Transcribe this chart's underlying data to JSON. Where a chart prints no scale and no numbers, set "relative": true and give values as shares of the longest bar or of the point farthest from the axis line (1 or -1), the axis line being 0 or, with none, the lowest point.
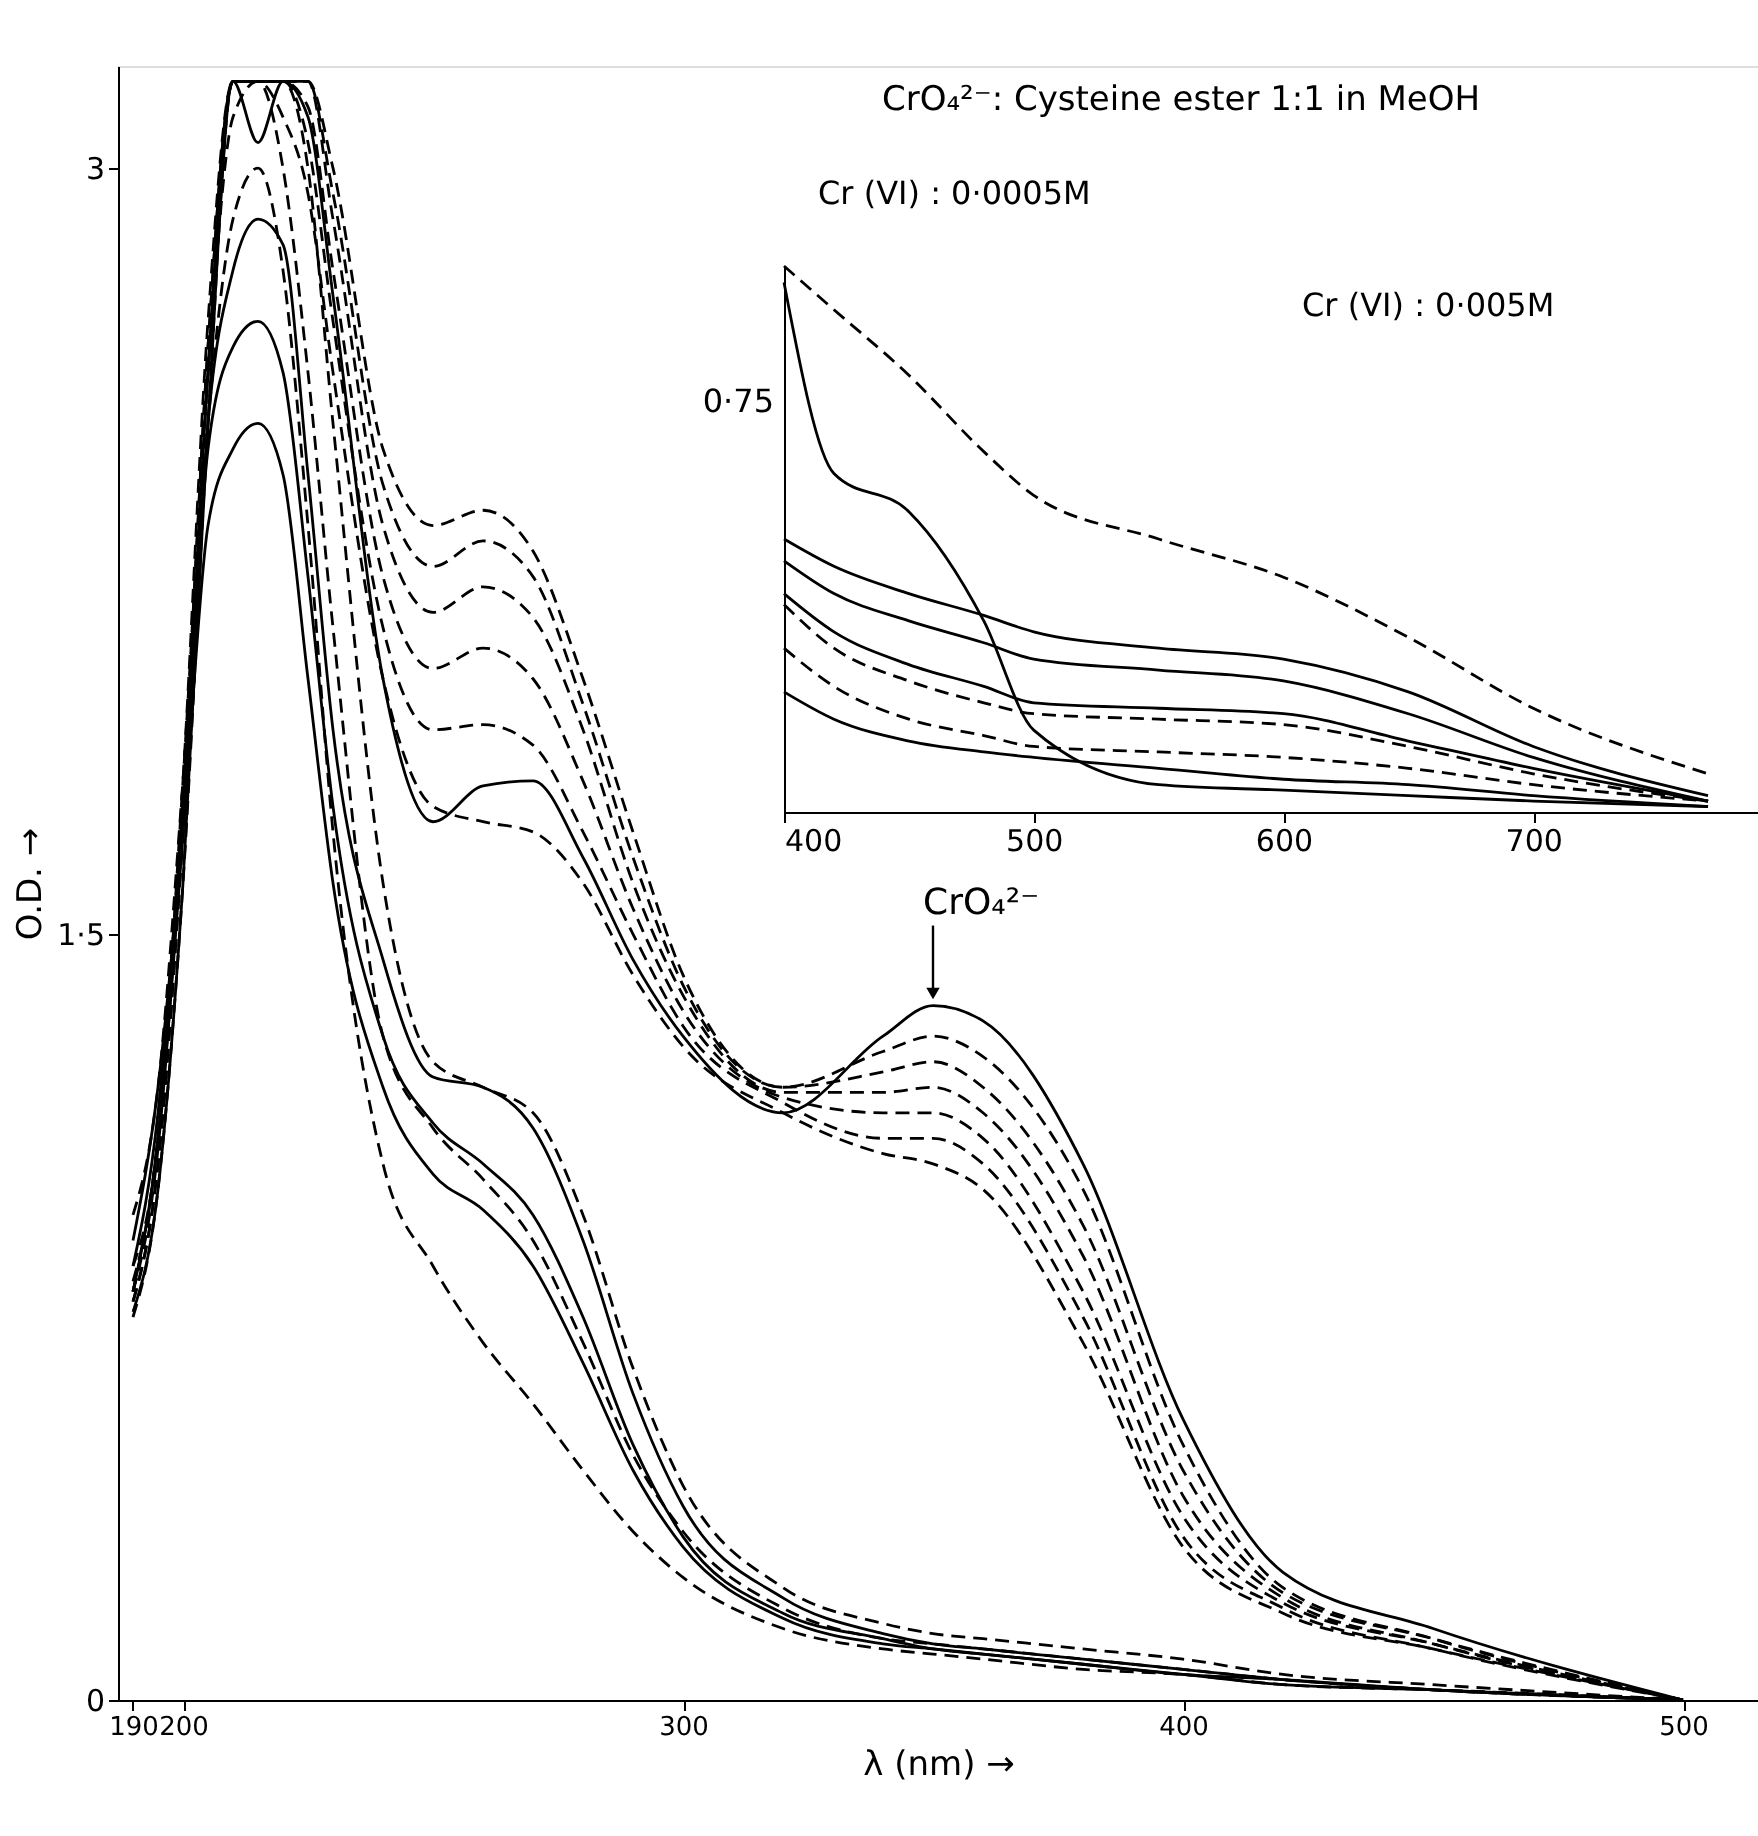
{
  "chart_data": [
    {
      "type": "line",
      "title": "CrO₄²⁻: Cysteine ester 1:1 in MeOH",
      "xlabel": "λ (nm) →",
      "ylabel": "O.D. →",
      "x": [
        190,
        195,
        200,
        205,
        210,
        215,
        220,
        225,
        230,
        240,
        250,
        260,
        270,
        280,
        290,
        300,
        320,
        340,
        350,
        360,
        380,
        400,
        420,
        450,
        500
      ],
      "xlim": [
        187,
        515
      ],
      "xticks": [
        190,
        200,
        300,
        400,
        500
      ],
      "ylim": [
        0,
        3.2
      ],
      "yticks": [
        0,
        {
          "value": 1.5,
          "label": "1·5"
        },
        3
      ],
      "series": [
        {
          "color": "#000000",
          "line_style": "dashed",
          "values": [
            0.78,
            1.05,
            1.7,
            2.6,
            3.17,
            3.17,
            3.17,
            3.17,
            3.0,
            2.45,
            2.3,
            2.33,
            2.25,
            2.0,
            1.7,
            1.42,
            1.2,
            1.27,
            1.3,
            1.26,
            1.0,
            0.5,
            0.22,
            0.12,
            0
          ]
        },
        {
          "color": "#000000",
          "line_style": "dashed",
          "values": [
            0.8,
            1.1,
            1.75,
            2.65,
            3.17,
            3.17,
            3.17,
            3.17,
            2.95,
            2.38,
            2.22,
            2.27,
            2.2,
            1.95,
            1.65,
            1.4,
            1.2,
            1.23,
            1.25,
            1.2,
            0.93,
            0.45,
            0.21,
            0.12,
            0
          ]
        },
        {
          "color": "#000000",
          "line_style": "dashed",
          "values": [
            0.82,
            1.1,
            1.8,
            2.7,
            3.17,
            3.17,
            3.17,
            3.17,
            2.9,
            2.3,
            2.13,
            2.18,
            2.12,
            1.9,
            1.6,
            1.38,
            1.19,
            1.19,
            1.2,
            1.15,
            0.87,
            0.4,
            0.2,
            0.11,
            0
          ]
        },
        {
          "color": "#000000",
          "line_style": "dashed",
          "values": [
            0.8,
            1.08,
            1.75,
            2.65,
            3.17,
            3.17,
            3.17,
            3.12,
            2.8,
            2.2,
            2.02,
            2.06,
            2.0,
            1.8,
            1.55,
            1.35,
            1.18,
            1.15,
            1.15,
            1.1,
            0.8,
            0.36,
            0.19,
            0.11,
            0
          ]
        },
        {
          "color": "#000000",
          "line_style": "dashed",
          "values": [
            0.78,
            1.05,
            1.7,
            2.6,
            3.17,
            3.17,
            3.17,
            3.05,
            2.7,
            2.1,
            1.9,
            1.91,
            1.87,
            1.7,
            1.5,
            1.32,
            1.17,
            1.1,
            1.1,
            1.05,
            0.75,
            0.32,
            0.18,
            0.1,
            0
          ]
        },
        {
          "color": "#000000",
          "line_style": "solid",
          "values": [
            0.76,
            1.0,
            1.6,
            2.5,
            3.17,
            3.05,
            3.17,
            3.1,
            2.75,
            2.0,
            1.72,
            1.79,
            1.8,
            1.65,
            1.45,
            1.3,
            1.15,
            1.3,
            1.36,
            1.33,
            1.05,
            0.55,
            0.25,
            0.14,
            0
          ]
        },
        {
          "color": "#000000",
          "line_style": "dashed",
          "values": [
            0.75,
            1.0,
            1.6,
            2.5,
            3.17,
            3.17,
            3.1,
            2.95,
            2.6,
            2.0,
            1.75,
            1.72,
            1.7,
            1.6,
            1.42,
            1.28,
            1.15,
            1.07,
            1.05,
            1.0,
            0.7,
            0.3,
            0.17,
            0.1,
            0
          ]
        },
        {
          "color": "#000000",
          "line_style": "solid",
          "values": [
            0.8,
            1.1,
            1.7,
            2.5,
            2.8,
            2.9,
            2.85,
            2.4,
            1.9,
            1.45,
            1.22,
            1.2,
            1.12,
            0.9,
            0.6,
            0.38,
            0.2,
            0.13,
            0.11,
            0.1,
            0.08,
            0.06,
            0.04,
            0.02,
            0
          ]
        },
        {
          "color": "#000000",
          "line_style": "solid",
          "values": [
            0.85,
            1.15,
            1.75,
            2.45,
            2.65,
            2.7,
            2.6,
            2.2,
            1.75,
            1.3,
            1.13,
            1.05,
            0.95,
            0.75,
            0.5,
            0.32,
            0.17,
            0.12,
            0.1,
            0.09,
            0.07,
            0.05,
            0.04,
            0.02,
            0
          ]
        },
        {
          "color": "#000000",
          "line_style": "solid",
          "values": [
            0.9,
            1.2,
            1.7,
            2.3,
            2.45,
            2.5,
            2.4,
            2.0,
            1.6,
            1.2,
            1.03,
            0.96,
            0.85,
            0.66,
            0.45,
            0.3,
            0.16,
            0.11,
            0.1,
            0.09,
            0.07,
            0.05,
            0.03,
            0.02,
            0
          ]
        },
        {
          "color": "#000000",
          "line_style": "dashed",
          "values": [
            0.8,
            1.1,
            1.75,
            2.6,
            3.17,
            3.17,
            3.17,
            3.0,
            2.5,
            1.6,
            1.25,
            1.2,
            1.15,
            0.95,
            0.65,
            0.42,
            0.22,
            0.15,
            0.13,
            0.12,
            0.1,
            0.08,
            0.05,
            0.03,
            0
          ]
        },
        {
          "color": "#000000",
          "line_style": "dashed",
          "values": [
            0.85,
            1.1,
            1.8,
            2.6,
            3.1,
            3.17,
            3.0,
            2.6,
            2.1,
            1.3,
            1.12,
            1.02,
            0.9,
            0.7,
            0.48,
            0.33,
            0.18,
            0.12,
            0.11,
            0.1,
            0.08,
            0.06,
            0.04,
            0.02,
            0
          ]
        },
        {
          "color": "#000000",
          "line_style": "dashed",
          "values": [
            0.95,
            1.2,
            1.8,
            2.5,
            2.9,
            3.0,
            2.8,
            2.3,
            1.7,
            1.05,
            0.85,
            0.7,
            0.58,
            0.45,
            0.33,
            0.24,
            0.14,
            0.1,
            0.09,
            0.08,
            0.06,
            0.05,
            0.03,
            0.02,
            0
          ]
        }
      ],
      "annotations": [
        "Cr (VI) : 0·0005M",
        {
          "text": "CrO₄²⁻",
          "x": 350,
          "y": 1.36
        }
      ]
    },
    {
      "type": "line",
      "x": [
        400,
        420,
        450,
        480,
        500,
        550,
        600,
        650,
        700,
        770
      ],
      "xlim": [
        400,
        790
      ],
      "xticks": [
        400,
        500,
        600,
        700
      ],
      "relative": true,
      "series": [
        {
          "color": "#000000",
          "line_style": "dashed",
          "values": [
            1.0,
            0.92,
            0.8,
            0.66,
            0.58,
            0.5,
            0.43,
            0.32,
            0.19,
            0.07
          ]
        },
        {
          "color": "#000000",
          "line_style": "solid",
          "values": [
            0.97,
            0.62,
            0.55,
            0.35,
            0.15,
            0.05,
            0.04,
            0.03,
            0.02,
            0.01
          ]
        },
        {
          "color": "#000000",
          "line_style": "solid",
          "values": [
            0.5,
            0.45,
            0.4,
            0.36,
            0.33,
            0.3,
            0.28,
            0.22,
            0.12,
            0.03
          ]
        },
        {
          "color": "#000000",
          "line_style": "solid",
          "values": [
            0.46,
            0.4,
            0.35,
            0.31,
            0.28,
            0.26,
            0.24,
            0.18,
            0.1,
            0.02
          ]
        },
        {
          "color": "#000000",
          "line_style": "solid",
          "values": [
            0.4,
            0.33,
            0.27,
            0.23,
            0.2,
            0.19,
            0.18,
            0.13,
            0.08,
            0.02
          ]
        },
        {
          "color": "#000000",
          "line_style": "dashed",
          "values": [
            0.38,
            0.3,
            0.24,
            0.2,
            0.18,
            0.17,
            0.16,
            0.12,
            0.07,
            0.02
          ]
        },
        {
          "color": "#000000",
          "line_style": "dashed",
          "values": [
            0.3,
            0.23,
            0.17,
            0.14,
            0.12,
            0.11,
            0.1,
            0.08,
            0.05,
            0.02
          ]
        },
        {
          "color": "#000000",
          "line_style": "solid",
          "values": [
            0.22,
            0.17,
            0.13,
            0.11,
            0.1,
            0.08,
            0.06,
            0.05,
            0.03,
            0.01
          ]
        }
      ],
      "annotations": [
        "Cr (VI) : 0·005M",
        "0·75"
      ]
    }
  ]
}
